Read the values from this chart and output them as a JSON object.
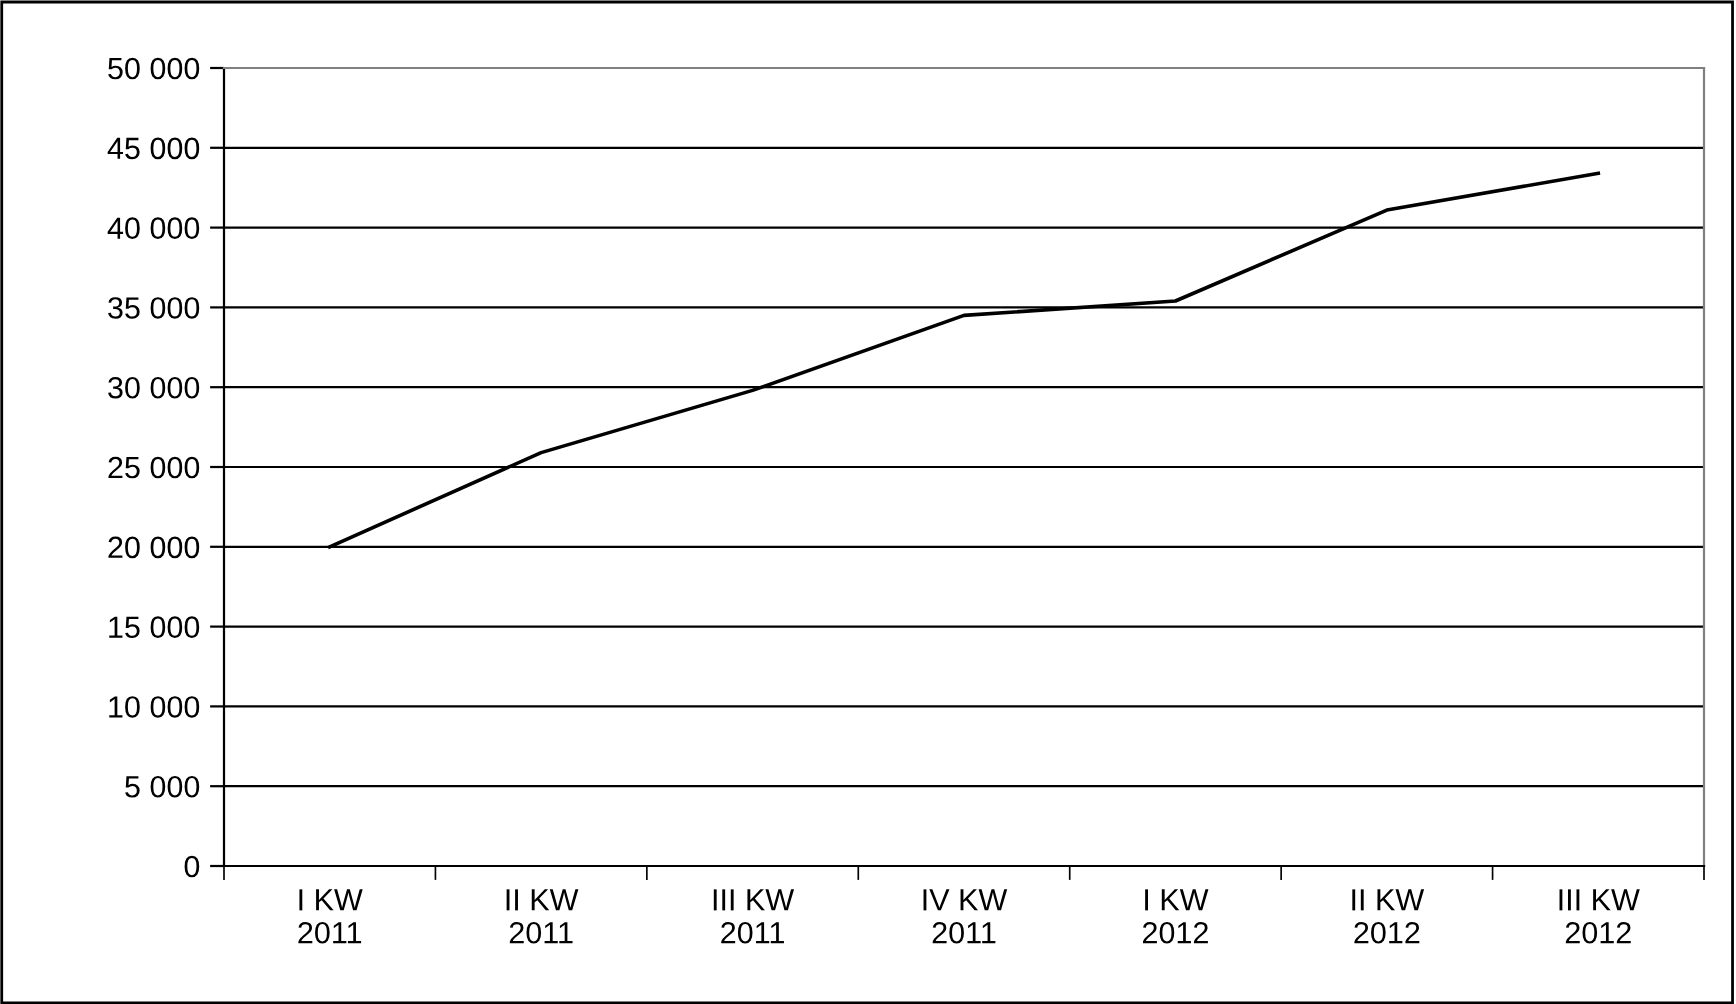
{
  "chart_data": {
    "type": "line",
    "categories": [
      "I KW\n2011",
      "II KW\n2011",
      "III KW\n2011",
      "IV KW\n2011",
      "I KW\n2012",
      "II KW\n2012",
      "III KW\n2012"
    ],
    "series": [
      {
        "color": "#000000",
        "values": [
          20000,
          25900,
          29800,
          34500,
          35400,
          41100,
          43400
        ]
      }
    ],
    "ylim": [
      0,
      50000
    ],
    "yticks": [
      {
        "value": 0,
        "label": "0"
      },
      {
        "value": 5000,
        "label": "5 000"
      },
      {
        "value": 10000,
        "label": "10 000"
      },
      {
        "value": 15000,
        "label": "15 000"
      },
      {
        "value": 20000,
        "label": "20 000"
      },
      {
        "value": 25000,
        "label": "25 000"
      },
      {
        "value": 30000,
        "label": "30 000"
      },
      {
        "value": 35000,
        "label": "35 000"
      },
      {
        "value": 40000,
        "label": "40 000"
      },
      {
        "value": 45000,
        "label": "45 000"
      },
      {
        "value": 50000,
        "label": "50 000"
      }
    ],
    "grid": "y",
    "legend": false,
    "marker": "none",
    "line_style": "solid"
  }
}
